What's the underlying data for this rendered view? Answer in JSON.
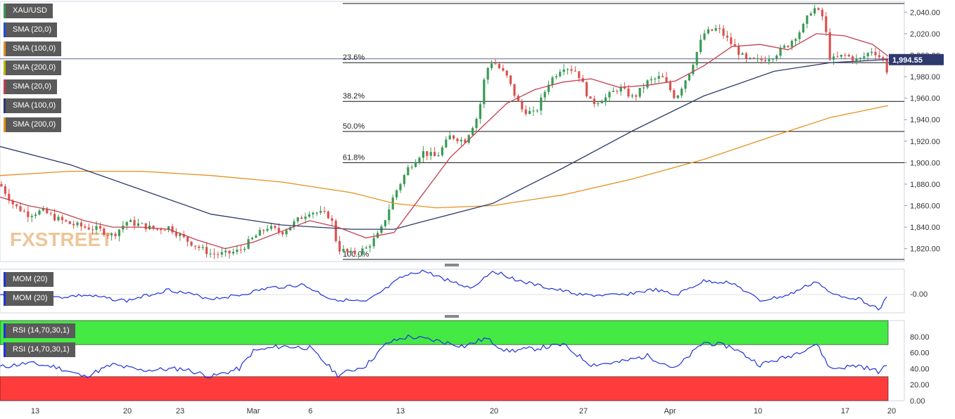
{
  "instrument": "XAU/USD",
  "watermark": "FXSTREET",
  "price_tag": "1,994.55",
  "colors": {
    "candle_up": "#3a9b56",
    "candle_down": "#d9534f",
    "sma20": "#c2404e",
    "sma100": "#2e3a6e",
    "sma200": "#e5901e",
    "momentum": "#1f33d9",
    "rsi": "#1f33d9",
    "rsi_overbought_zone": "#44e944",
    "rsi_oversold_zone": "#ff3b3b",
    "price_tag_bg": "#2e3a6e"
  },
  "indicator_labels": [
    {
      "text": "XAU/USD",
      "color": "#3a9b56"
    },
    {
      "text": "SMA (20,0)",
      "color": "#1f4ed8"
    },
    {
      "text": "SMA (100,0)",
      "color": "#e5901e"
    },
    {
      "text": "SMA (200,0)",
      "color": "#b8b800"
    },
    {
      "text": "SMA (20,0)",
      "color": "#c2404e"
    },
    {
      "text": "SMA (100,0)",
      "color": "#2e3a6e"
    },
    {
      "text": "SMA (200,0)",
      "color": "#e5901e"
    }
  ],
  "momentum_labels": [
    "MOM (20)",
    "MOM (20)"
  ],
  "rsi_labels": [
    "RSI (14,70,30,1)",
    "RSI (14,70,30,1)"
  ],
  "chart_data": {
    "type": "candlestick",
    "price_axis": {
      "ticks": [
        1820,
        1840,
        1860,
        1880,
        1900,
        1920,
        1940,
        1960,
        1980,
        2000,
        2020,
        2040
      ],
      "tick_labels": [
        "1,820.00",
        "1,840.00",
        "1,860.00",
        "1,880.00",
        "1,900.00",
        "1,920.00",
        "1,940.00",
        "1,960.00",
        "1,980.00",
        "2,000.00",
        "2,020.00",
        "2,040.00"
      ],
      "range": [
        1808,
        2050
      ]
    },
    "x_axis": {
      "tick_labels": [
        "13",
        "20",
        "23",
        "Mar",
        "6",
        "13",
        "20",
        "27",
        "Apr",
        "10",
        "17",
        "20"
      ]
    },
    "fibonacci": [
      {
        "label": "23.6%",
        "price": 1993
      },
      {
        "label": "38.2%",
        "price": 1957
      },
      {
        "label": "50.0%",
        "price": 1929
      },
      {
        "label": "61.8%",
        "price": 1900
      },
      {
        "label": "100.0%",
        "price": 1810
      }
    ],
    "fib_high": 2048,
    "current_price": 1994.55,
    "price_path": [
      [
        0,
        1880
      ],
      [
        20,
        1860
      ],
      [
        40,
        1852
      ],
      [
        60,
        1855
      ],
      [
        80,
        1848
      ],
      [
        100,
        1843
      ],
      [
        120,
        1840
      ],
      [
        140,
        1838
      ],
      [
        160,
        1832
      ],
      [
        180,
        1845
      ],
      [
        200,
        1842
      ],
      [
        220,
        1838
      ],
      [
        240,
        1840
      ],
      [
        260,
        1830
      ],
      [
        280,
        1822
      ],
      [
        300,
        1815
      ],
      [
        320,
        1815
      ],
      [
        340,
        1818
      ],
      [
        360,
        1830
      ],
      [
        380,
        1840
      ],
      [
        400,
        1835
      ],
      [
        420,
        1845
      ],
      [
        440,
        1855
      ],
      [
        460,
        1852
      ],
      [
        470,
        1850
      ],
      [
        480,
        1820
      ],
      [
        500,
        1815
      ],
      [
        520,
        1820
      ],
      [
        540,
        1835
      ],
      [
        560,
        1870
      ],
      [
        580,
        1895
      ],
      [
        600,
        1910
      ],
      [
        620,
        1905
      ],
      [
        640,
        1925
      ],
      [
        660,
        1920
      ],
      [
        680,
        1945
      ],
      [
        690,
        1985
      ],
      [
        700,
        1995
      ],
      [
        720,
        1980
      ],
      [
        740,
        1950
      ],
      [
        760,
        1945
      ],
      [
        780,
        1975
      ],
      [
        800,
        1990
      ],
      [
        820,
        1985
      ],
      [
        840,
        1955
      ],
      [
        860,
        1960
      ],
      [
        880,
        1970
      ],
      [
        900,
        1960
      ],
      [
        920,
        1975
      ],
      [
        940,
        1980
      ],
      [
        960,
        1960
      ],
      [
        980,
        1985
      ],
      [
        1000,
        2020
      ],
      [
        1020,
        2025
      ],
      [
        1040,
        2010
      ],
      [
        1060,
        1995
      ],
      [
        1080,
        1995
      ],
      [
        1100,
        2000
      ],
      [
        1120,
        2010
      ],
      [
        1140,
        2025
      ],
      [
        1155,
        2045
      ],
      [
        1170,
        2035
      ],
      [
        1180,
        1995
      ],
      [
        1200,
        2000
      ],
      [
        1220,
        1995
      ],
      [
        1240,
        2005
      ],
      [
        1255,
        1995
      ],
      [
        1258,
        1975
      ],
      [
        1262,
        1994.55
      ]
    ],
    "sma20_path": [
      [
        0,
        1868
      ],
      [
        40,
        1860
      ],
      [
        80,
        1855
      ],
      [
        120,
        1846
      ],
      [
        160,
        1840
      ],
      [
        200,
        1840
      ],
      [
        240,
        1838
      ],
      [
        280,
        1828
      ],
      [
        320,
        1820
      ],
      [
        360,
        1826
      ],
      [
        400,
        1836
      ],
      [
        440,
        1846
      ],
      [
        480,
        1840
      ],
      [
        520,
        1830
      ],
      [
        560,
        1835
      ],
      [
        600,
        1870
      ],
      [
        640,
        1905
      ],
      [
        680,
        1930
      ],
      [
        720,
        1955
      ],
      [
        760,
        1968
      ],
      [
        800,
        1975
      ],
      [
        840,
        1978
      ],
      [
        880,
        1970
      ],
      [
        920,
        1972
      ],
      [
        960,
        1976
      ],
      [
        1000,
        1990
      ],
      [
        1040,
        2008
      ],
      [
        1080,
        2010
      ],
      [
        1120,
        2005
      ],
      [
        1160,
        2020
      ],
      [
        1200,
        2018
      ],
      [
        1240,
        2010
      ],
      [
        1262,
        1999
      ]
    ],
    "sma100_path": [
      [
        0,
        1915
      ],
      [
        100,
        1898
      ],
      [
        200,
        1875
      ],
      [
        300,
        1852
      ],
      [
        400,
        1842
      ],
      [
        500,
        1838
      ],
      [
        560,
        1838
      ],
      [
        600,
        1845
      ],
      [
        700,
        1862
      ],
      [
        800,
        1895
      ],
      [
        900,
        1930
      ],
      [
        1000,
        1962
      ],
      [
        1100,
        1985
      ],
      [
        1180,
        1993
      ],
      [
        1262,
        1996
      ]
    ],
    "sma200_path": [
      [
        0,
        1888
      ],
      [
        100,
        1892
      ],
      [
        200,
        1892
      ],
      [
        300,
        1888
      ],
      [
        400,
        1882
      ],
      [
        500,
        1872
      ],
      [
        560,
        1862
      ],
      [
        620,
        1858
      ],
      [
        700,
        1860
      ],
      [
        800,
        1870
      ],
      [
        900,
        1885
      ],
      [
        1000,
        1903
      ],
      [
        1100,
        1925
      ],
      [
        1180,
        1942
      ],
      [
        1262,
        1953
      ]
    ],
    "momentum": {
      "zero_label": "-0.00",
      "path": [
        [
          0,
          420
        ],
        [
          60,
          425
        ],
        [
          120,
          420
        ],
        [
          180,
          428
        ],
        [
          240,
          412
        ],
        [
          300,
          425
        ],
        [
          340,
          420
        ],
        [
          380,
          410
        ],
        [
          430,
          405
        ],
        [
          470,
          425
        ],
        [
          520,
          430
        ],
        [
          550,
          410
        ],
        [
          570,
          395
        ],
        [
          600,
          385
        ],
        [
          640,
          400
        ],
        [
          670,
          410
        ],
        [
          700,
          385
        ],
        [
          740,
          400
        ],
        [
          780,
          410
        ],
        [
          830,
          420
        ],
        [
          880,
          420
        ],
        [
          930,
          412
        ],
        [
          960,
          420
        ],
        [
          1000,
          400
        ],
        [
          1040,
          402
        ],
        [
          1080,
          428
        ],
        [
          1120,
          420
        ],
        [
          1160,
          400
        ],
        [
          1180,
          418
        ],
        [
          1220,
          425
        ],
        [
          1250,
          440
        ],
        [
          1262,
          420
        ]
      ]
    },
    "rsi": {
      "ticks": [
        0,
        20,
        40,
        60,
        80
      ],
      "tick_labels": [
        "0.00",
        "20.00",
        "40.00",
        "60.00",
        "80.00"
      ],
      "overbought": 70,
      "oversold": 30,
      "values": [
        [
          0,
          42
        ],
        [
          40,
          47
        ],
        [
          80,
          42
        ],
        [
          120,
          30
        ],
        [
          160,
          45
        ],
        [
          200,
          38
        ],
        [
          260,
          40
        ],
        [
          300,
          30
        ],
        [
          340,
          40
        ],
        [
          360,
          62
        ],
        [
          400,
          68
        ],
        [
          440,
          66
        ],
        [
          480,
          32
        ],
        [
          520,
          44
        ],
        [
          550,
          72
        ],
        [
          580,
          80
        ],
        [
          620,
          75
        ],
        [
          660,
          68
        ],
        [
          690,
          78
        ],
        [
          720,
          62
        ],
        [
          760,
          65
        ],
        [
          800,
          70
        ],
        [
          840,
          45
        ],
        [
          880,
          48
        ],
        [
          920,
          56
        ],
        [
          960,
          40
        ],
        [
          1000,
          73
        ],
        [
          1040,
          67
        ],
        [
          1080,
          45
        ],
        [
          1120,
          55
        ],
        [
          1160,
          71
        ],
        [
          1180,
          40
        ],
        [
          1220,
          44
        ],
        [
          1250,
          36
        ],
        [
          1262,
          46
        ]
      ]
    }
  }
}
